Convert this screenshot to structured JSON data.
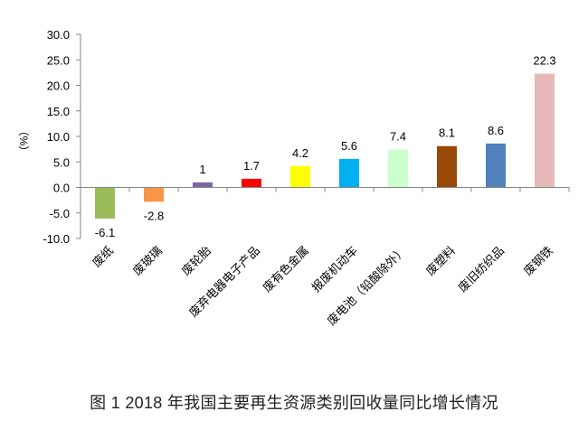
{
  "chart_data": {
    "type": "bar",
    "title": "图 1    2018 年我国主要再生资源类别回收量同比增长情况",
    "xlabel": "",
    "ylabel": "（%）",
    "ylim": [
      -10,
      30
    ],
    "yticks": [
      30,
      25,
      20,
      15,
      10,
      5,
      0,
      -5,
      -10
    ],
    "ytick_labels": [
      "30.0",
      "25.0",
      "20.0",
      "15.0",
      "10.0",
      "5.0",
      "0.0",
      "-5.0",
      "-10.0"
    ],
    "grid": false,
    "categories": [
      "废纸",
      "废玻璃",
      "废轮胎",
      "废弃电器电子产品",
      "废有色金属",
      "报废机动车",
      "废电池（铅酸除外）",
      "废塑料",
      "废旧纺织品",
      "废钢铁"
    ],
    "values": [
      -6.1,
      -2.8,
      1,
      1.7,
      4.2,
      5.6,
      7.4,
      8.1,
      8.6,
      22.3
    ],
    "value_labels": [
      "-6.1",
      "-2.8",
      "1",
      "1.7",
      "4.2",
      "5.6",
      "7.4",
      "8.1",
      "8.6",
      "22.3"
    ],
    "colors": [
      "#9bbb59",
      "#f79646",
      "#8064a2",
      "#ff0000",
      "#ffff00",
      "#00b0f0",
      "#ccffcc",
      "#984807",
      "#4f81bd",
      "#e6b9b8"
    ]
  },
  "caption": "图 1    2018 年我国主要再生资源类别回收量同比增长情况"
}
